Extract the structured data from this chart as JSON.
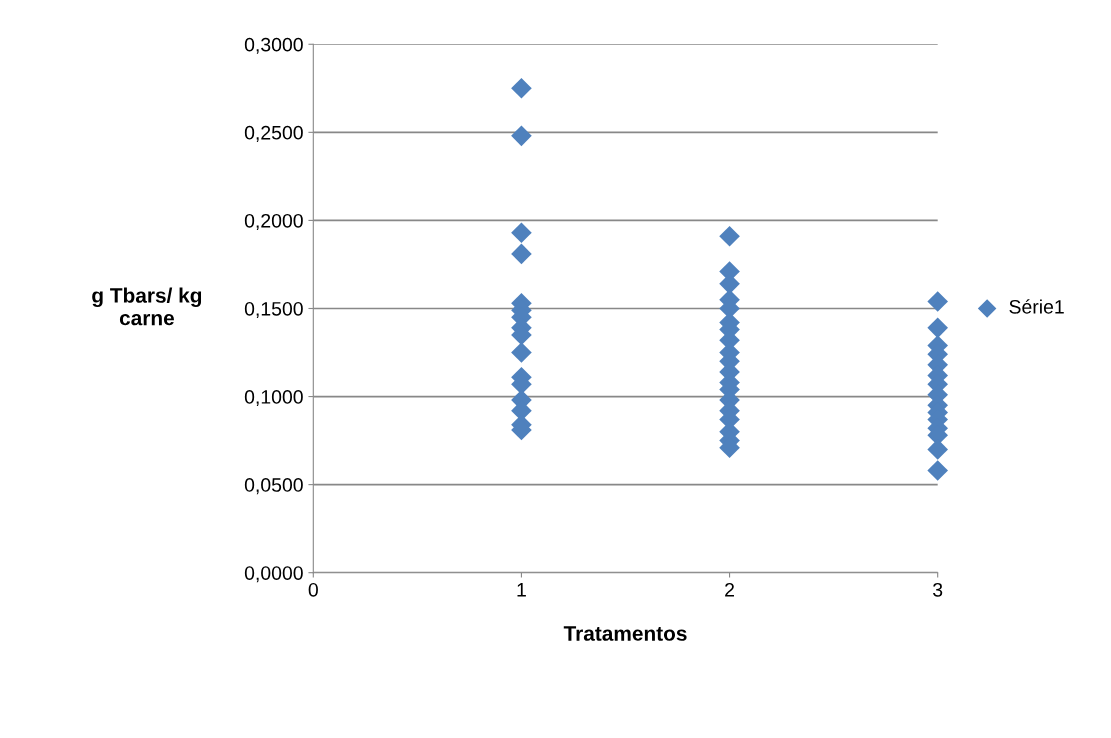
{
  "chart_data": {
    "type": "scatter",
    "xlabel": "Tratamentos",
    "ylabel": "g Tbars/ kg\ncarne",
    "x": [
      1,
      1,
      1,
      1,
      1,
      1,
      1,
      1,
      1,
      1,
      1,
      1,
      1,
      1,
      1,
      1,
      2,
      2,
      2,
      2,
      2,
      2,
      2,
      2,
      2,
      2,
      2,
      2,
      2,
      2,
      2,
      2,
      2,
      2,
      2,
      3,
      3,
      3,
      3,
      3,
      3,
      3,
      3,
      3,
      3,
      3,
      3,
      3,
      3,
      3
    ],
    "series": [
      {
        "name": "Série1",
        "color": "#4f81bd",
        "values": [
          0.275,
          0.248,
          0.193,
          0.181,
          0.153,
          0.149,
          0.145,
          0.139,
          0.135,
          0.125,
          0.111,
          0.107,
          0.098,
          0.092,
          0.084,
          0.081,
          0.191,
          0.171,
          0.164,
          0.155,
          0.15,
          0.142,
          0.138,
          0.132,
          0.125,
          0.12,
          0.114,
          0.108,
          0.104,
          0.098,
          0.092,
          0.087,
          0.08,
          0.075,
          0.071,
          0.154,
          0.139,
          0.129,
          0.124,
          0.118,
          0.112,
          0.107,
          0.101,
          0.095,
          0.091,
          0.087,
          0.082,
          0.078,
          0.07,
          0.058
        ]
      }
    ],
    "xlim": [
      0,
      3
    ],
    "xticks": [
      0,
      1,
      2,
      3
    ],
    "ylim": [
      0,
      0.3
    ],
    "yticks": [
      {
        "value": 0,
        "label": "0,0000"
      },
      {
        "value": 0.05,
        "label": "0,0500"
      },
      {
        "value": 0.1,
        "label": "0,1000"
      },
      {
        "value": 0.15,
        "label": "0,1500"
      },
      {
        "value": 0.2,
        "label": "0,2000"
      },
      {
        "value": 0.25,
        "label": "0,2500"
      },
      {
        "value": 0.3,
        "label": "0,3000"
      }
    ],
    "grid": "y",
    "legend": "right",
    "marker": "diamond"
  }
}
